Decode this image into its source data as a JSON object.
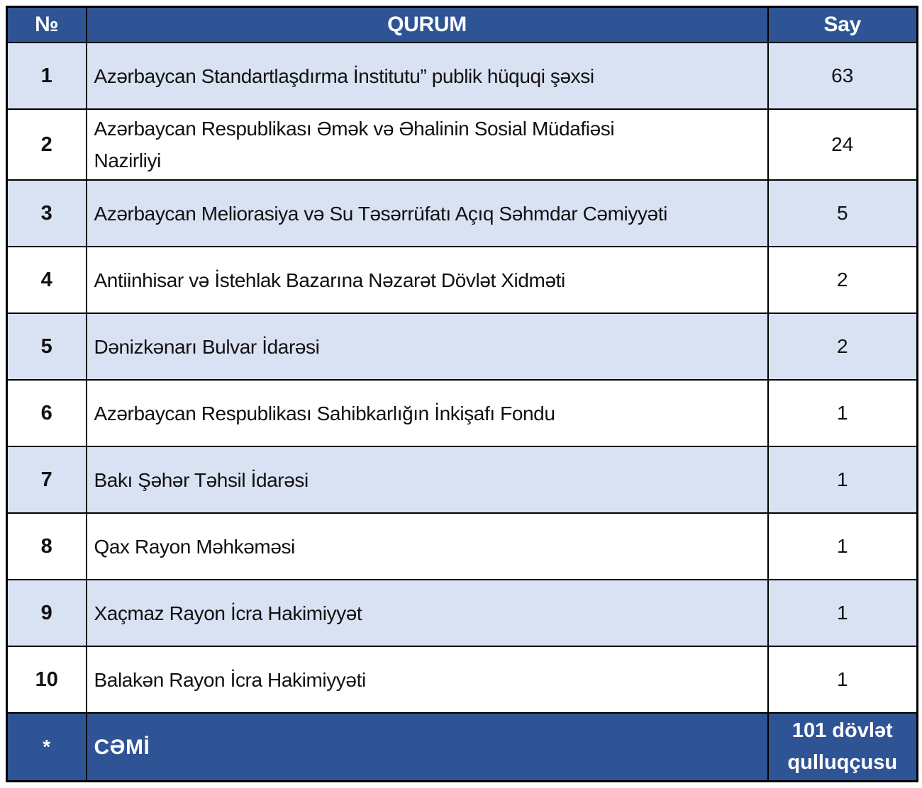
{
  "colors": {
    "header_bg": "#2F5496",
    "footer_bg": "#2F5496",
    "alt_row_bg": "#D9E2F3",
    "row_bg": "#FFFFFF",
    "border": "#000000",
    "header_text": "#FFFFFF",
    "body_text": "#111111"
  },
  "table": {
    "columns": {
      "num": "№",
      "qurum": "QURUM",
      "say": "Say"
    },
    "rows": [
      {
        "num": "1",
        "qurum": "Azərbaycan Standartlaşdırma İnstitutu” publik hüquqi şəxsi",
        "say": "63"
      },
      {
        "num": "2",
        "qurum": "Azərbaycan Respublikası Əmək və Əhalinin Sosial Müdafiəsi\nNazirliyi",
        "say": "24"
      },
      {
        "num": "3",
        "qurum": "Azərbaycan Meliorasiya və Su Təsərrüfatı Açıq Səhmdar Cəmiyyəti",
        "say": "5"
      },
      {
        "num": "4",
        "qurum": "Antiinhisar və İstehlak Bazarına Nəzarət Dövlət Xidməti",
        "say": "2"
      },
      {
        "num": "5",
        "qurum": "Dənizkənarı Bulvar İdarəsi",
        "say": "2"
      },
      {
        "num": "6",
        "qurum": "Azərbaycan Respublikası Sahibkarlığın İnkişafı Fondu",
        "say": "1"
      },
      {
        "num": "7",
        "qurum": "Bakı Şəhər Təhsil İdarəsi",
        "say": "1"
      },
      {
        "num": "8",
        "qurum": "Qax Rayon Məhkəməsi",
        "say": "1"
      },
      {
        "num": "9",
        "qurum": "Xaçmaz Rayon İcra Hakimiyyət",
        "say": "1"
      },
      {
        "num": "10",
        "qurum": "Balakən Rayon İcra Hakimiyyəti",
        "say": "1"
      }
    ],
    "footer": {
      "num": "*",
      "qurum": "CƏMİ",
      "say": "101 dövlət qulluqçusu"
    }
  }
}
